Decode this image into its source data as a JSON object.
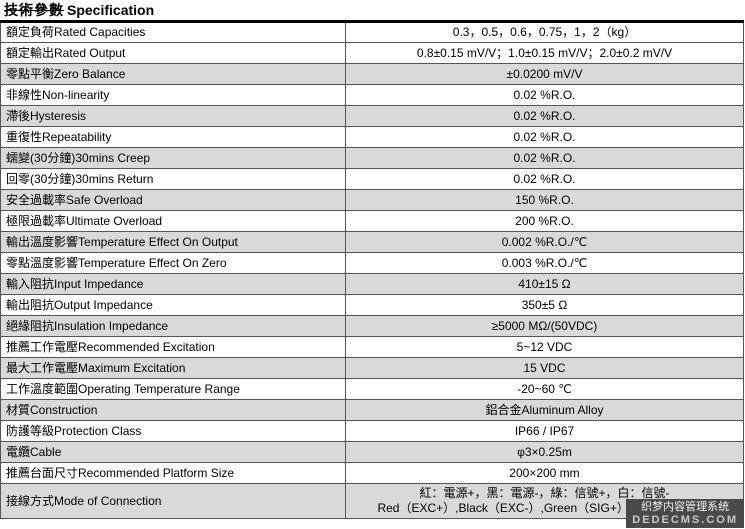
{
  "title": {
    "zh": "技術參數",
    "en": "Specification"
  },
  "table": {
    "rows": [
      {
        "label_zh": "額定負荷",
        "label_en": "Rated Capacities",
        "value": "0.3，0.5，0.6，0.75，1，2（kg）"
      },
      {
        "label_zh": "額定輸出",
        "label_en": "Rated Output",
        "value": "0.8±0.15 mV/V；1.0±0.15 mV/V；2.0±0.2 mV/V"
      },
      {
        "label_zh": "零點平衡",
        "label_en": "Zero Balance",
        "value": "±0.0200 mV/V"
      },
      {
        "label_zh": "非線性",
        "label_en": "Non-linearity",
        "value": "0.02 %R.O."
      },
      {
        "label_zh": "滯後",
        "label_en": "Hysteresis",
        "value": "0.02 %R.O."
      },
      {
        "label_zh": "重復性",
        "label_en": "Repeatability",
        "value": "0.02 %R.O."
      },
      {
        "label_zh": "蠕變(30分鐘)",
        "label_en": "30mins Creep",
        "value": "0.02 %R.O."
      },
      {
        "label_zh": "回零(30分鐘)",
        "label_en": "30mins Return",
        "value": "0.02 %R.O."
      },
      {
        "label_zh": "安全過載率",
        "label_en": "Safe Overload",
        "value": "150 %R.O."
      },
      {
        "label_zh": "極限過載率",
        "label_en": "Ultimate Overload",
        "value": "200 %R.O."
      },
      {
        "label_zh": "輸出溫度影響",
        "label_en": "Temperature Effect On Output",
        "value": "0.002 %R.O./℃"
      },
      {
        "label_zh": "零點溫度影響",
        "label_en": "Temperature Effect On Zero",
        "value": "0.003 %R.O./℃"
      },
      {
        "label_zh": "輸入阻抗",
        "label_en": "Input Impedance",
        "value": "410±15 Ω"
      },
      {
        "label_zh": "輸出阻抗",
        "label_en": "Output Impedance",
        "value": "350±5 Ω"
      },
      {
        "label_zh": "絕緣阻抗",
        "label_en": "Insulation Impedance",
        "value": "≥5000 MΩ/(50VDC)"
      },
      {
        "label_zh": "推薦工作電壓",
        "label_en": "Recommended Excitation",
        "value": "5~12 VDC"
      },
      {
        "label_zh": "最大工作電壓",
        "label_en": "Maximum Excitation",
        "value": "15 VDC"
      },
      {
        "label_zh": "工作溫度範圍",
        "label_en": "Operating Temperature Range",
        "value": "-20~60 ℃"
      },
      {
        "label_zh": "材質",
        "label_en": "Construction",
        "value": "鋁合金Aluminum Alloy"
      },
      {
        "label_zh": "防護等級",
        "label_en": "Protection Class",
        "value": "IP66 / IP67"
      },
      {
        "label_zh": "電纜",
        "label_en": "Cable",
        "value": "φ3×0.25m"
      },
      {
        "label_zh": "推薦台面尺寸",
        "label_en": "Recommended Platform Size",
        "value": "200×200 mm"
      },
      {
        "label_zh": "接線方式",
        "label_en": "Mode of Connection",
        "value": "紅：電源+，黑：電源-，綠：信號+，白：信號-",
        "value2": "Red（EXC+）,Black（EXC-）,Green（SIG+）,White（SIG-）"
      }
    ]
  },
  "watermark": {
    "line1": "织梦内容管理系统",
    "line2": "DEDECMS.COM"
  }
}
